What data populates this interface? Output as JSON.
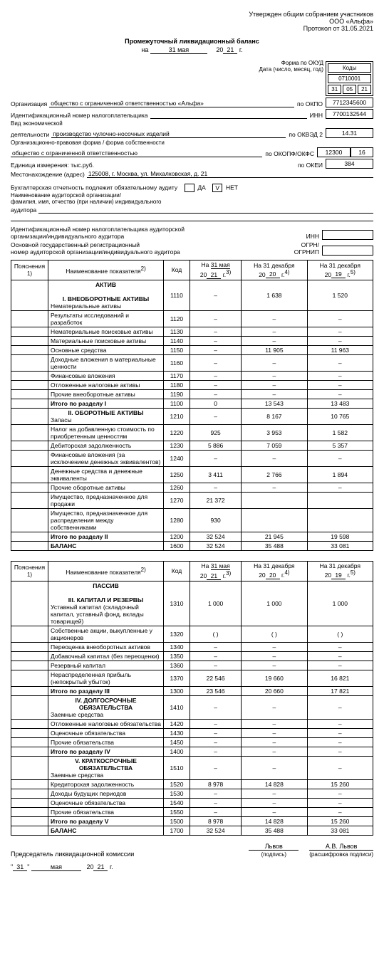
{
  "approval": {
    "l1": "Утвержден общим собранием участников",
    "l2": "ООО «Альфа»",
    "l3": "Протокол от 31.05.2021"
  },
  "title": "Промежуточный ликвидационный баланс",
  "date": {
    "prefix": "на",
    "day": "31 мая",
    "year": "21",
    "suffix": "г."
  },
  "codes": {
    "hdr": "Коды",
    "okud_label": "Форма по ОКУД",
    "okud": "0710001",
    "date_label": "Дата (число, месяц, год)",
    "d": "31",
    "m": "05",
    "y": "21"
  },
  "org": {
    "label": "Организация",
    "val": "общество с ограниченной ответственностью «Альфа»",
    "code_label": "по ОКПО",
    "code": "7712345600"
  },
  "inn": {
    "label": "Идентификационный номер налогоплательщика",
    "code_label": "ИНН",
    "code": "7700132544"
  },
  "act": {
    "l1": "Вид экономической",
    "l2": "деятельности",
    "val": "производство чулочно-носочных изделий",
    "code_label": "по ОКВЭД 2",
    "code": "14.31"
  },
  "form": {
    "l1": "Организационно-правовая форма / форма собственности",
    "val": "общество с ограниченной ответственностью",
    "code_label": "по ОКОПФ/ОКФС",
    "c1": "12300",
    "c2": "16"
  },
  "unit": {
    "label": "Единица измерения: тыс.руб.",
    "code_label": "по ОКЕИ",
    "code": "384"
  },
  "addr": {
    "label": "Местонахождение (адрес)",
    "val": "125008, г. Москва, ул. Михалковская, д. 21"
  },
  "audit": {
    "l1": "Бухгалтерская отчетность подлежит обязательному аудиту",
    "yes": "ДА",
    "no": "НЕТ",
    "l2": "Наименование аудиторской организации/",
    "l3": "фамилия, имя, отчество (при наличии) индивидуального",
    "l4": "аудитора"
  },
  "aud2": {
    "l1": "Идентификационный номер налогоплательщика аудиторской",
    "l2": "организации/индивидуального аудитора",
    "l3": "Основной государственный регистрационный",
    "l4": "номер аудиторской организации/индивидуального аудитора",
    "inn": "ИНН",
    "ogrn": "ОГРН/",
    "ogrnip": "ОГРНИП"
  },
  "thead": {
    "c1": "Пояснения",
    "c1s": "1)",
    "c2": "Наименование показателя",
    "c2s": "2)",
    "c3": "Код",
    "p1a": "На",
    "p1b": "31 мая",
    "p1c": "20",
    "p1d": "21",
    "p1e": "г.",
    "p1s": "3)",
    "p2a": "На 31 декабря",
    "p2c": "20",
    "p2d": "20",
    "p2e": "г.",
    "p2s": "4)",
    "p3a": "На 31 декабря",
    "p3c": "20",
    "p3d": "19",
    "p3e": "г.",
    "p3s": "5)"
  },
  "aktiv": "АКТИВ",
  "s1": {
    "hdr": "I. ВНЕОБОРОТНЫЕ АКТИВЫ",
    "rows": [
      [
        "Нематериальные активы",
        "1110",
        "–",
        "1 638",
        "1 520"
      ],
      [
        "Результаты исследований и разработок",
        "1120",
        "–",
        "–",
        "–"
      ],
      [
        "Нематериальные поисковые активы",
        "1130",
        "–",
        "–",
        "–"
      ],
      [
        "Материальные поисковые активы",
        "1140",
        "–",
        "–",
        "–"
      ],
      [
        "Основные средства",
        "1150",
        "–",
        "11 905",
        "11 963"
      ],
      [
        "Доходные вложения в материальные ценности",
        "1160",
        "–",
        "–",
        "–"
      ],
      [
        "Финансовые вложения",
        "1170",
        "–",
        "–",
        "–"
      ],
      [
        "Отложенные налоговые активы",
        "1180",
        "–",
        "–",
        "–"
      ],
      [
        "Прочие внеоборотные активы",
        "1190",
        "–",
        "–",
        "–"
      ]
    ],
    "total": [
      "Итого по разделу I",
      "1100",
      "0",
      "13 543",
      "13 483"
    ]
  },
  "s2": {
    "hdr": "II. ОБОРОТНЫЕ АКТИВЫ",
    "rows": [
      [
        "Запасы",
        "1210",
        "–",
        "8 167",
        "10 765"
      ],
      [
        "Налог на добавленную стоимость по приобретенным ценностям",
        "1220",
        "925",
        "3 953",
        "1 582"
      ],
      [
        "Дебиторская задолженность",
        "1230",
        "5 886",
        "7 059",
        "5 357"
      ],
      [
        "Финансовые вложения (за исключением денежных эквивалентов)",
        "1240",
        "–",
        "–",
        "–"
      ],
      [
        "Денежные средства и денежные эквиваленты",
        "1250",
        "3 411",
        "2 766",
        "1 894"
      ],
      [
        "Прочие оборотные активы",
        "1260",
        "–",
        "–",
        "–"
      ],
      [
        "Имущество, предназначенное для продажи",
        "1270",
        "21 372",
        "",
        ""
      ],
      [
        "Имущество, предназначенное для распределения между собственниками",
        "1280",
        "930",
        "",
        ""
      ]
    ],
    "total": [
      "Итого по разделу II",
      "1200",
      "32 524",
      "21 945",
      "19 598"
    ]
  },
  "bal1": [
    "БАЛАНС",
    "1600",
    "32 524",
    "35 488",
    "33 081"
  ],
  "passiv": "ПАССИВ",
  "s3": {
    "hdr": "III. КАПИТАЛ И РЕЗЕРВЫ",
    "rows": [
      [
        "Уставный капитал (складочный капитал, уставный фонд, вклады товарищей)",
        "1310",
        "1 000",
        "1 000",
        "1 000"
      ],
      [
        "Собственные акции, выкупленные у акционеров",
        "1320",
        "(                            )",
        "(                            )",
        "(                            )"
      ],
      [
        "Переоценка внеоборотных активов",
        "1340",
        "–",
        "–",
        "–"
      ],
      [
        "Добавочный капитал (без переоценки)",
        "1350",
        "–",
        "–",
        "–"
      ],
      [
        "Резервный капитал",
        "1360",
        "–",
        "–",
        "–"
      ],
      [
        "Нераспределенная прибыль (непокрытый убыток)",
        "1370",
        "22 546",
        "19 660",
        "16 821"
      ]
    ],
    "total": [
      "Итого по разделу III",
      "1300",
      "23 546",
      "20 660",
      "17 821"
    ]
  },
  "s4": {
    "hdr": "IV. ДОЛГОСРОЧНЫЕ ОБЯЗАТЕЛЬСТВА",
    "rows": [
      [
        "Заемные средства",
        "1410",
        "–",
        "–",
        "–"
      ],
      [
        "Отложенные налоговые обязательства",
        "1420",
        "–",
        "–",
        "–"
      ],
      [
        "Оценочные обязательства",
        "1430",
        "–",
        "–",
        "–"
      ],
      [
        "Прочие обязательства",
        "1450",
        "–",
        "–",
        "–"
      ]
    ],
    "total": [
      "Итого по разделу IV",
      "1400",
      "–",
      "–",
      "–"
    ]
  },
  "s5": {
    "hdr": "V. КРАТКОСРОЧНЫЕ ОБЯЗАТЕЛЬСТВА",
    "rows": [
      [
        "Заемные средства",
        "1510",
        "–",
        "–",
        "–"
      ],
      [
        "Кредиторская задолженность",
        "1520",
        "8 978",
        "14 828",
        "15 260"
      ],
      [
        "Доходы будущих периодов",
        "1530",
        "–",
        "–",
        "–"
      ],
      [
        "Оценочные обязательства",
        "1540",
        "–",
        "–",
        "–"
      ],
      [
        "Прочие обязательства",
        "1550",
        "–",
        "–",
        "–"
      ]
    ],
    "total": [
      "Итого по разделу V",
      "1500",
      "8 978",
      "14 828",
      "15 260"
    ]
  },
  "bal2": [
    "БАЛАНС",
    "1700",
    "32 524",
    "35 488",
    "33 081"
  ],
  "sig": {
    "role": "Председатель ликвидационной комиссии",
    "name1": "Львов",
    "name2": "А.В. Львов",
    "s1": "(подпись)",
    "s2": "(расшифровка подписи)",
    "q": "\"",
    "d": "31",
    "m": "мая",
    "yp": "20",
    "y": "21",
    "g": "г."
  }
}
